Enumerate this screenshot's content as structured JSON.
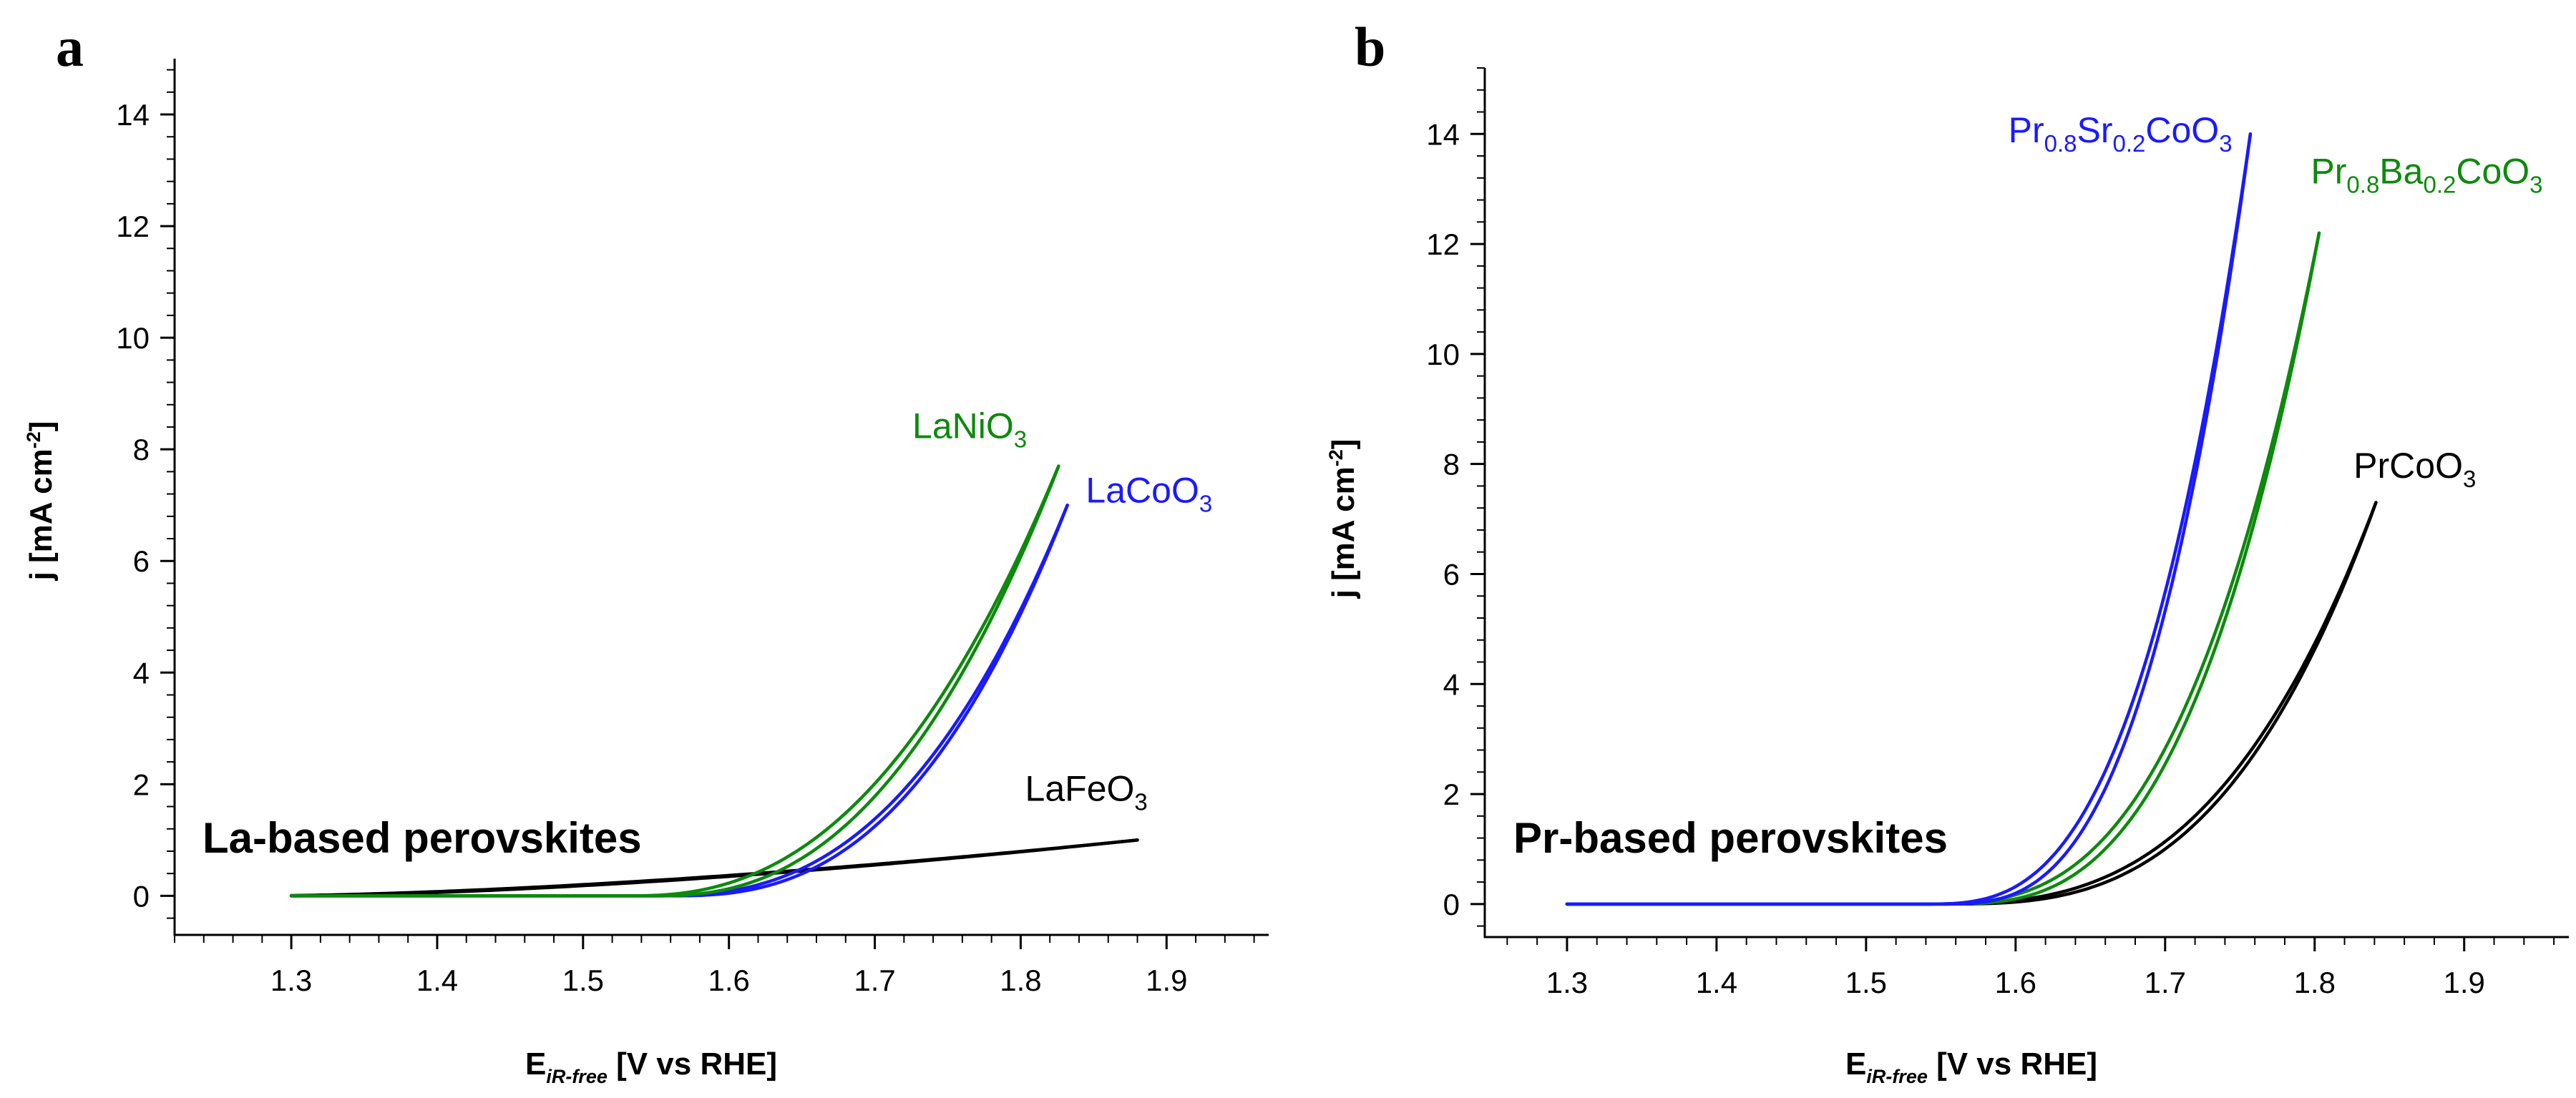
{
  "colors": {
    "green": "#0c8a0c",
    "blue": "#1a1aff",
    "black": "#000000"
  },
  "chart_data": [
    {
      "panel": "a",
      "type": "line",
      "title": "La-based perovskites",
      "xlabel": {
        "main": "E",
        "sub": "iR-free",
        "rest": " [V vs RHE]"
      },
      "ylabel": {
        "main": "j [mA cm",
        "sup": "-2",
        "end": "]"
      },
      "xlim": [
        1.22,
        1.97
      ],
      "ylim": [
        -0.7,
        15
      ],
      "xticks": [
        "1.3",
        "1.4",
        "1.5",
        "1.6",
        "1.7",
        "1.8",
        "1.9"
      ],
      "yticks": [
        "0",
        "2",
        "4",
        "6",
        "8",
        "10",
        "12",
        "14"
      ],
      "series": [
        {
          "name": "LaFeO",
          "sub": "3",
          "color": "#000000",
          "onset": 1.3,
          "end": 1.88,
          "jmax": 1.0,
          "exp": 1.6,
          "hyst": 0.02,
          "label_at": [
            1.845,
            1.7
          ],
          "anchor": "middle"
        },
        {
          "name": "LaCoO",
          "sub": "3",
          "color": "#1a1aff",
          "onset": 1.56,
          "end": 1.832,
          "jmax": 7.0,
          "exp": 2.6,
          "hyst": 0.012,
          "label_at": [
            1.888,
            7.05
          ],
          "anchor": "middle"
        },
        {
          "name": "LaNiO",
          "sub": "3",
          "color": "#0c8a0c",
          "onset": 1.55,
          "end": 1.826,
          "jmax": 7.7,
          "exp": 2.4,
          "hyst": 0.018,
          "label_at": [
            1.765,
            8.2
          ],
          "anchor": "middle"
        }
      ]
    },
    {
      "panel": "b",
      "type": "line",
      "title": "Pr-based perovskites",
      "xlabel": {
        "main": "E",
        "sub": "iR-free",
        "rest": " [V vs RHE]"
      },
      "ylabel": {
        "main": "j [mA cm",
        "sup": "-2",
        "end": "]"
      },
      "xlim": [
        1.245,
        1.97
      ],
      "ylim": [
        -0.6,
        15.2
      ],
      "xticks": [
        "1.3",
        "1.4",
        "1.5",
        "1.6",
        "1.7",
        "1.8",
        "1.9"
      ],
      "yticks": [
        "0",
        "2",
        "4",
        "6",
        "8",
        "10",
        "12",
        "14"
      ],
      "series": [
        {
          "name": "PrCoO",
          "sub": "3",
          "color": "#000000",
          "onset": 1.55,
          "end": 1.841,
          "jmax": 7.3,
          "exp": 3.0,
          "hyst": 0.014,
          "label_at": [
            1.867,
            7.75
          ],
          "anchor": "middle"
        },
        {
          "name": "Pr0.8Ba0.2CoO",
          "sub": "3",
          "color": "#0c8a0c",
          "onset": 1.55,
          "end": 1.803,
          "jmax": 12.2,
          "exp": 3.0,
          "hyst": 0.014,
          "label_at": [
            1.875,
            13.1
          ],
          "anchor": "middle",
          "parts": [
            [
              "Pr",
              ""
            ],
            [
              "0.8",
              "sub"
            ],
            [
              "Ba",
              ""
            ],
            [
              "0.2",
              "sub"
            ],
            [
              "CoO",
              ""
            ],
            [
              "3",
              "sub"
            ]
          ]
        },
        {
          "name": "Pr0.8Sr0.2CoO",
          "sub": "3",
          "color": "#1a1aff",
          "onset": 1.55,
          "end": 1.757,
          "jmax": 14.0,
          "exp": 3.0,
          "hyst": 0.012,
          "label_at": [
            1.67,
            13.85
          ],
          "anchor": "middle",
          "parts": [
            [
              "Pr",
              ""
            ],
            [
              "0.8",
              "sub"
            ],
            [
              "Sr",
              ""
            ],
            [
              "0.2",
              "sub"
            ],
            [
              "CoO",
              ""
            ],
            [
              "3",
              "sub"
            ]
          ]
        }
      ]
    }
  ]
}
